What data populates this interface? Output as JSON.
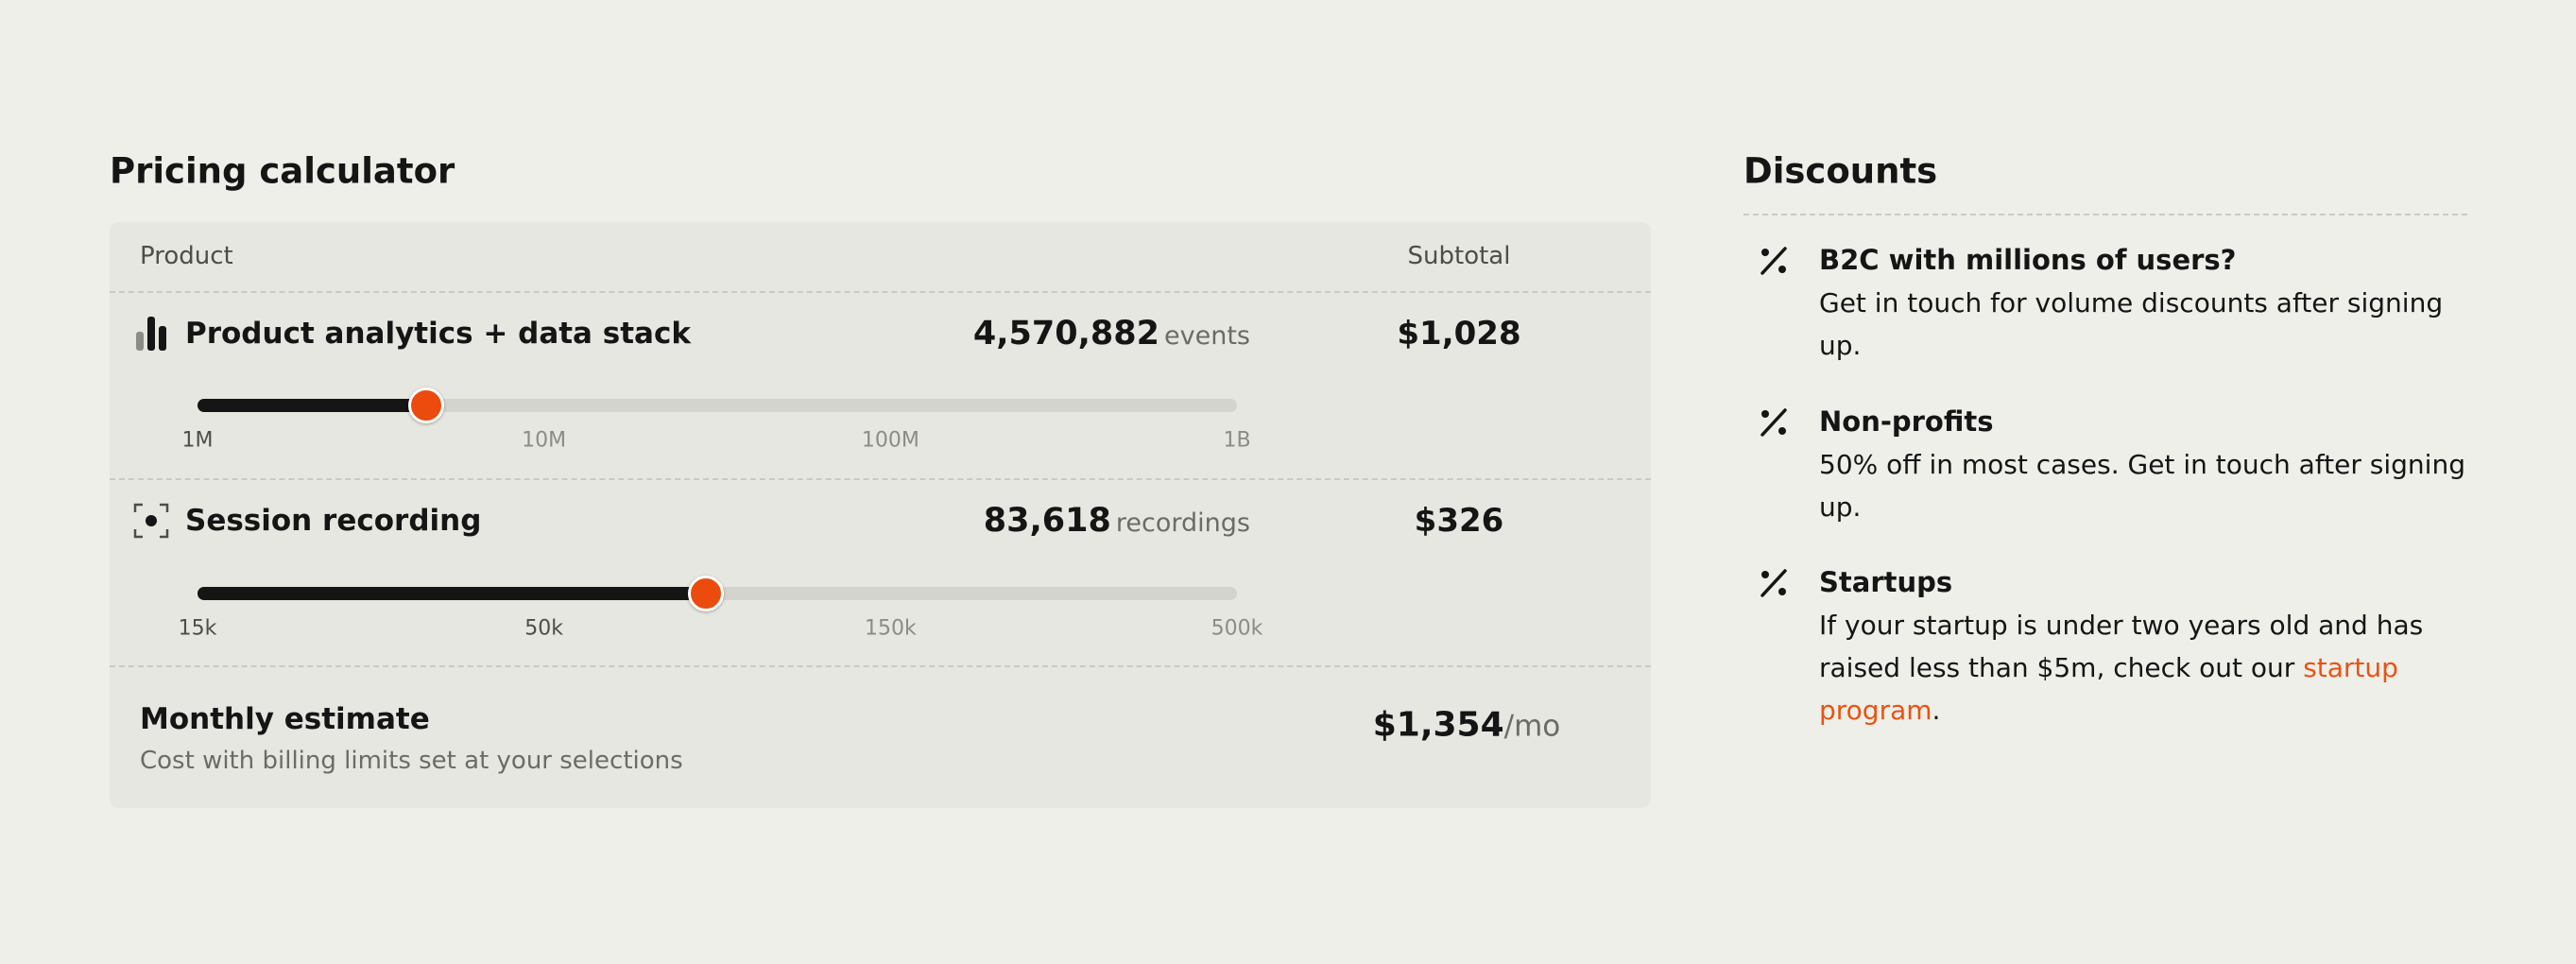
{
  "calculator": {
    "title": "Pricing calculator",
    "header": {
      "product": "Product",
      "subtotal": "Subtotal"
    },
    "rows": [
      {
        "name": "Product analytics + data stack",
        "volume": {
          "value": 4570882,
          "label": "4,570,882"
        },
        "unit": "events",
        "subtotal": "$1,028",
        "ticks": [
          {
            "value": 1000000,
            "label": "1M"
          },
          {
            "value": 10000000,
            "label": "10M"
          },
          {
            "value": 100000000,
            "label": "100M"
          },
          {
            "value": 1000000000,
            "label": "1B"
          }
        ]
      },
      {
        "name": "Session recording",
        "volume": {
          "value": 83618,
          "label": "83,618"
        },
        "unit": "recordings",
        "subtotal": "$326",
        "ticks": [
          {
            "value": 15000,
            "label": "15k"
          },
          {
            "value": 50000,
            "label": "50k"
          },
          {
            "value": 150000,
            "label": "150k"
          },
          {
            "value": 500000,
            "label": "500k"
          }
        ]
      }
    ],
    "estimate": {
      "title": "Monthly estimate",
      "note": "Cost with billing limits set at your selections",
      "total": "$1,354",
      "period": "/mo"
    }
  },
  "discounts": {
    "title": "Discounts",
    "items": [
      {
        "title": "B2C with millions of users?",
        "body": "Get in touch for volume discounts after signing up."
      },
      {
        "title": "Non-profits",
        "body": "50% off in most cases. Get in touch after signing up."
      },
      {
        "title": "Startups",
        "body": "If your startup is under two years old and has raised less than $5m, check out our ",
        "link": "startup program",
        "after": "."
      }
    ]
  }
}
